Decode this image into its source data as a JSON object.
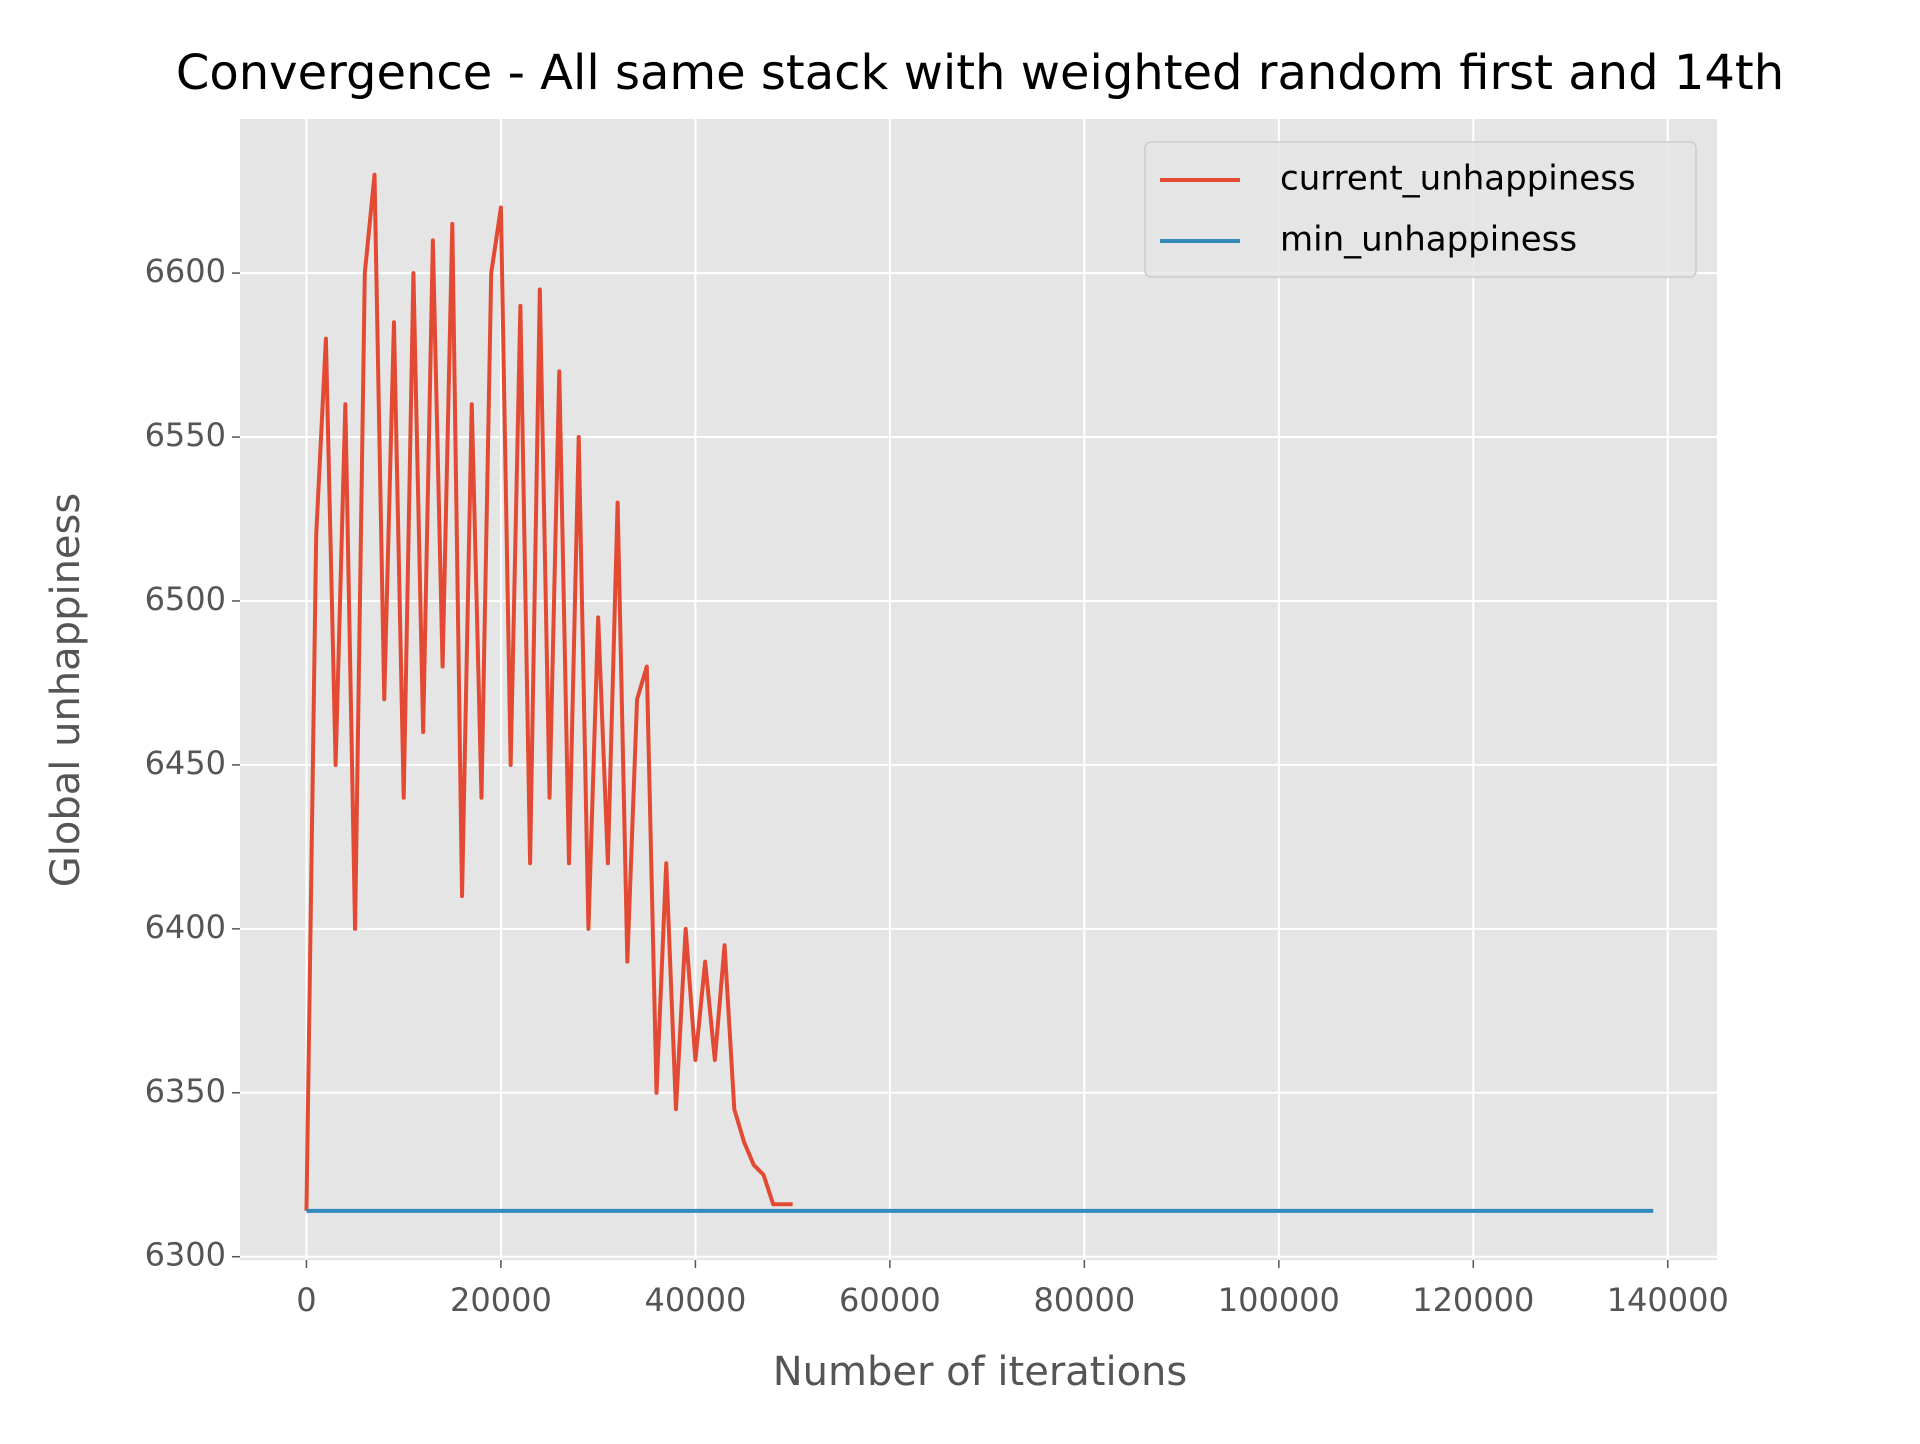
{
  "chart_data": {
    "type": "line",
    "title": "Convergence - All same stack with weighted random first and 14th",
    "x_label": "Number of iterations",
    "y_label": "Global unhappiness",
    "x": [
      0,
      1000,
      2000,
      3000,
      4000,
      5000,
      6000,
      7000,
      8000,
      9000,
      10000,
      11000,
      12000,
      13000,
      14000,
      15000,
      16000,
      17000,
      18000,
      19000,
      20000,
      21000,
      22000,
      23000,
      24000,
      25000,
      26000,
      27000,
      28000,
      29000,
      30000,
      31000,
      32000,
      33000,
      34000,
      35000,
      36000,
      37000,
      38000,
      39000,
      40000,
      41000,
      42000,
      43000,
      44000,
      45000,
      46000,
      47000,
      48000,
      49000,
      50000,
      138500
    ],
    "series": [
      {
        "name": "current_unhappiness",
        "color": "#E24A33",
        "values": [
          6314,
          6520,
          6580,
          6450,
          6560,
          6400,
          6600,
          6630,
          6470,
          6585,
          6440,
          6600,
          6460,
          6610,
          6480,
          6615,
          6410,
          6560,
          6440,
          6600,
          6620,
          6450,
          6590,
          6420,
          6595,
          6440,
          6570,
          6420,
          6550,
          6400,
          6495,
          6420,
          6530,
          6390,
          6470,
          6480,
          6350,
          6420,
          6345,
          6400,
          6360,
          6390,
          6360,
          6395,
          6345,
          6335,
          6328,
          6325,
          6316,
          6316,
          6316,
          null
        ]
      },
      {
        "name": "min_unhappiness",
        "color": "#348ABD",
        "values": [
          6314,
          6314,
          6314,
          6314,
          6314,
          6314,
          6314,
          6314,
          6314,
          6314,
          6314,
          6314,
          6314,
          6314,
          6314,
          6314,
          6314,
          6314,
          6314,
          6314,
          6314,
          6314,
          6314,
          6314,
          6314,
          6314,
          6314,
          6314,
          6314,
          6314,
          6314,
          6314,
          6314,
          6314,
          6314,
          6314,
          6314,
          6314,
          6314,
          6314,
          6314,
          6314,
          6314,
          6314,
          6314,
          6314,
          6314,
          6314,
          6314,
          6314,
          6314,
          6314
        ]
      }
    ],
    "xlim": [
      -6835,
      145063
    ],
    "xticks": [
      0,
      20000,
      40000,
      60000,
      80000,
      100000,
      120000,
      140000
    ],
    "ylim": [
      6299,
      6647
    ],
    "yticks": [
      6300,
      6350,
      6400,
      6450,
      6500,
      6550,
      6600
    ],
    "grid": true,
    "legend": "upper right"
  }
}
